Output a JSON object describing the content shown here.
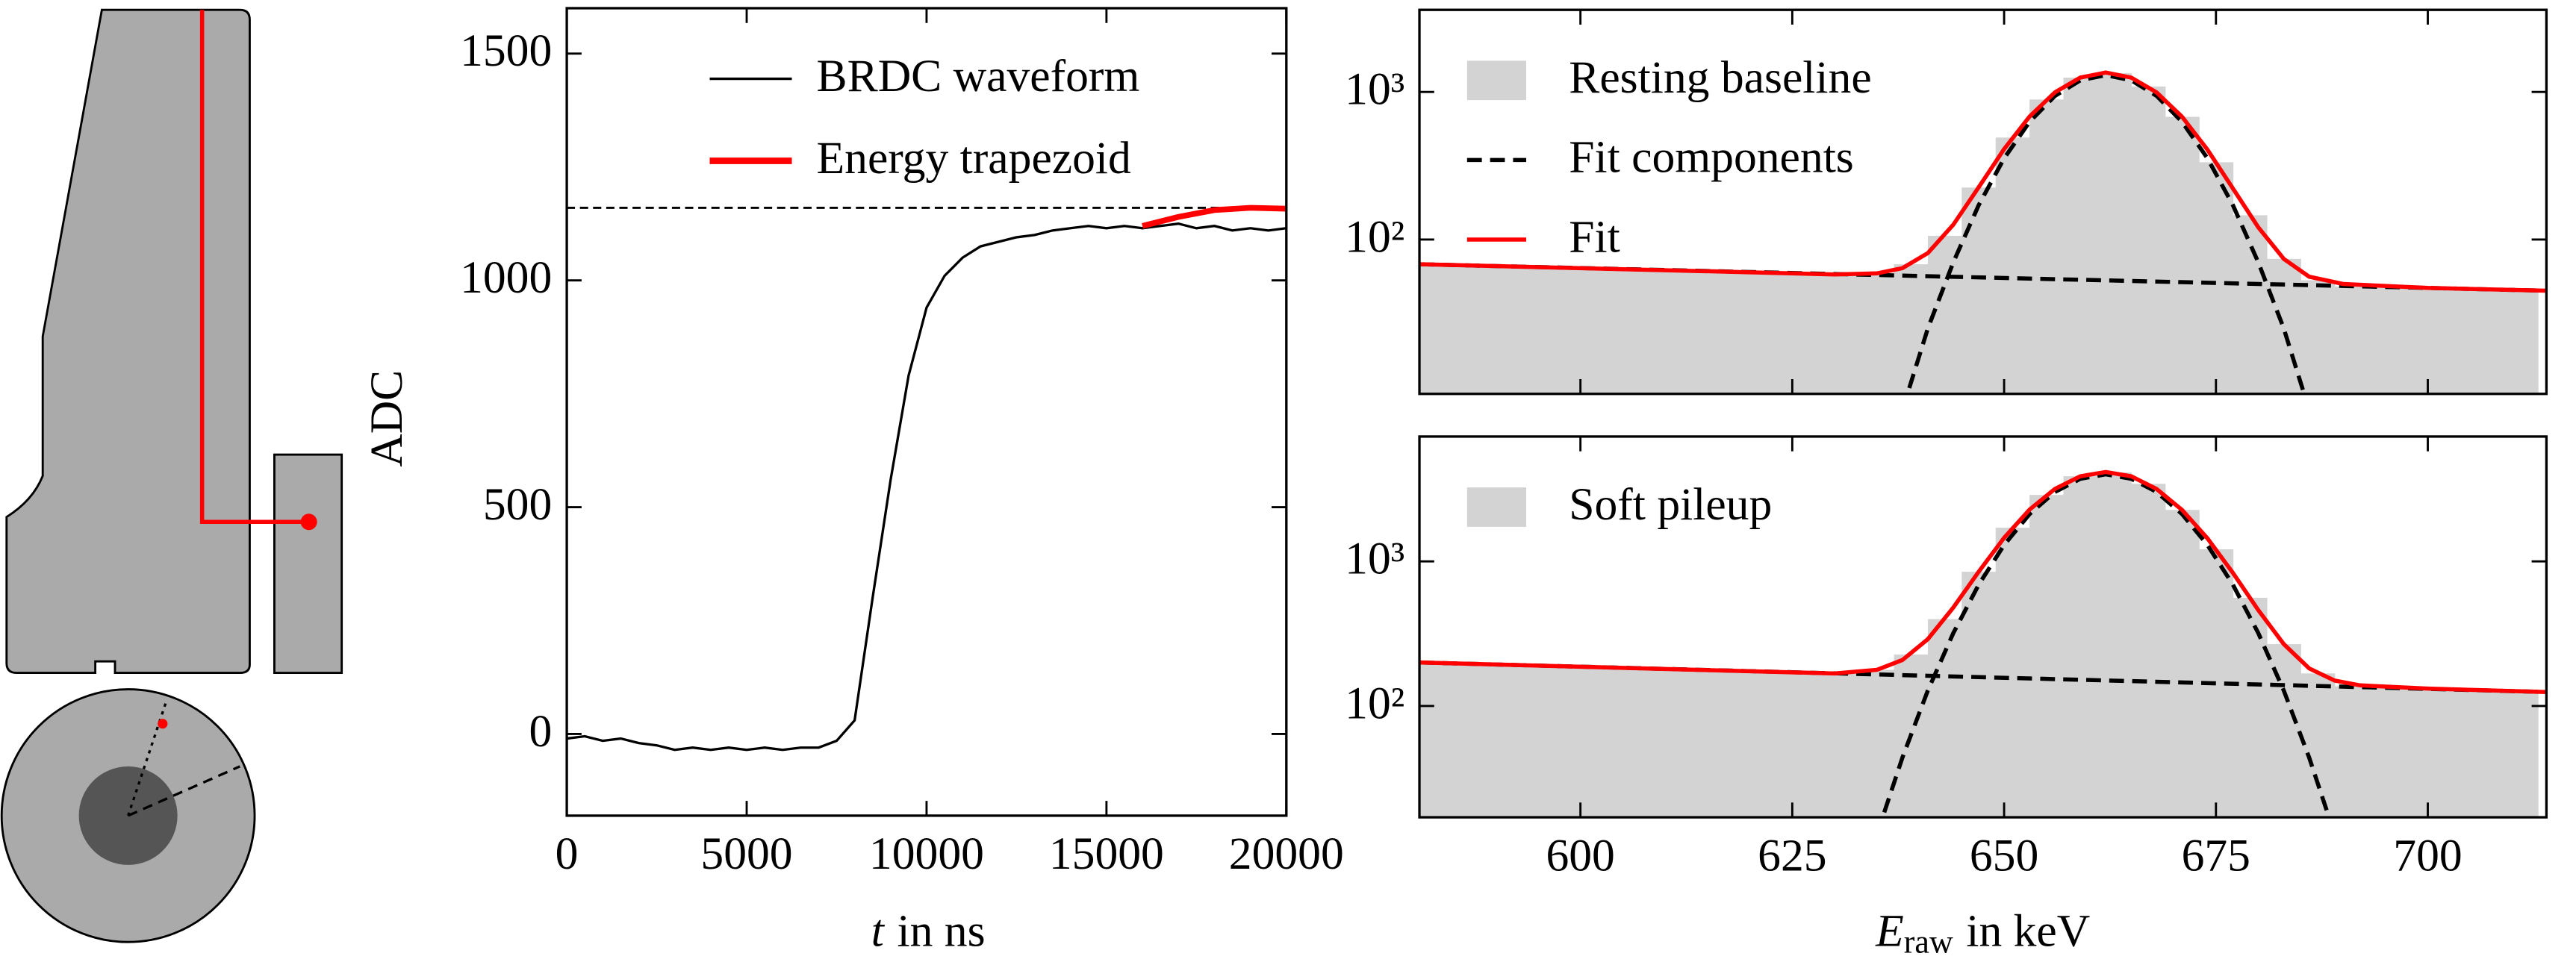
{
  "chart_data": [
    {
      "type": "line",
      "xlabel": {
        "italic": "t",
        "text": "in ns"
      },
      "ylabel": "ADC",
      "xlim": [
        0,
        20000
      ],
      "xticks": [
        0,
        5000,
        10000,
        15000,
        20000
      ],
      "ylim": [
        -180,
        1600
      ],
      "yticks": [
        0,
        500,
        1000,
        1500
      ],
      "x": [
        0,
        500,
        1000,
        1500,
        2000,
        2500,
        3000,
        3500,
        4000,
        4500,
        5000,
        5500,
        6000,
        6500,
        7000,
        7500,
        8000,
        8500,
        9000,
        9500,
        10000,
        10500,
        11000,
        11500,
        12000,
        12500,
        13000,
        13500,
        14000,
        14500,
        15000,
        15500,
        16000,
        16500,
        17000,
        17500,
        18000,
        18500,
        19000,
        19500,
        20000
      ],
      "series": [
        {
          "name": "BRDC waveform",
          "color": "#000000",
          "values": [
            -10,
            -5,
            -15,
            -10,
            -20,
            -25,
            -35,
            -30,
            -35,
            -30,
            -35,
            -30,
            -35,
            -30,
            -30,
            -15,
            30,
            300,
            560,
            790,
            940,
            1010,
            1050,
            1075,
            1085,
            1095,
            1100,
            1110,
            1115,
            1120,
            1115,
            1120,
            1115,
            1120,
            1125,
            1115,
            1120,
            1110,
            1115,
            1110,
            1115
          ]
        },
        {
          "name": "Energy trapezoid",
          "color": "#ff0000",
          "x": [
            16000,
            17000,
            18000,
            19000,
            20000
          ],
          "values": [
            1120,
            1140,
            1155,
            1160,
            1158
          ]
        }
      ],
      "reference_line": {
        "value": 1160,
        "color": "#000000"
      }
    },
    {
      "type": "histogram",
      "log_y": true,
      "xlim": [
        581,
        714
      ],
      "xticks": [
        600,
        625,
        650,
        675,
        700
      ],
      "xtick_labels": false,
      "ylim": [
        9,
        3600
      ],
      "yticks": [
        {
          "value": 100,
          "label": "10²"
        },
        {
          "value": 1000,
          "label": "10³"
        }
      ],
      "bins": [
        581,
        585,
        589,
        593,
        597,
        601,
        605,
        609,
        613,
        617,
        621,
        625,
        629,
        633,
        637,
        641,
        645,
        649,
        653,
        657,
        661,
        665,
        669,
        673,
        677,
        681,
        685,
        689,
        693,
        697,
        701,
        705,
        709,
        713
      ],
      "series": [
        {
          "name": "Resting baseline",
          "color": "#d3d3d3",
          "values": [
            69,
            66,
            67,
            64,
            65,
            63,
            64,
            61,
            63,
            60,
            61,
            58,
            59,
            59,
            68,
            106,
            225,
            491,
            889,
            1251,
            1340,
            1089,
            678,
            334,
            146,
            74,
            53,
            48,
            49,
            47,
            46,
            46,
            45
          ]
        }
      ],
      "fit_components": {
        "name": "Fit components",
        "color": "#000000",
        "gauss_x": [
          638,
          641,
          644,
          647,
          650,
          653,
          656,
          659,
          662,
          665,
          668,
          671,
          674,
          677,
          680,
          683,
          686
        ],
        "gauss_values": [
          7,
          25,
          70,
          171,
          355,
          627,
          940,
          1199,
          1300,
          1199,
          940,
          627,
          355,
          171,
          70,
          25,
          7
        ],
        "background_x": [
          581,
          714
        ],
        "background_values": [
          68,
          45
        ]
      },
      "fit": {
        "name": "Fit",
        "color": "#ff0000",
        "x": [
          581,
          620,
          630,
          635,
          638,
          641,
          644,
          647,
          650,
          653,
          656,
          659,
          662,
          665,
          668,
          671,
          674,
          677,
          680,
          683,
          686,
          690,
          700,
          714
        ],
        "values": [
          68,
          60,
          58,
          59,
          64,
          81,
          126,
          226,
          410,
          681,
          994,
          1252,
          1353,
          1251,
          992,
          679,
          406,
          222,
          121,
          74,
          56,
          50,
          47,
          45
        ]
      }
    },
    {
      "type": "histogram",
      "log_y": true,
      "xlabel": {
        "italic": "E",
        "sub": "raw",
        "text": "in keV"
      },
      "xlim": [
        581,
        714
      ],
      "xticks": [
        600,
        625,
        650,
        675,
        700
      ],
      "ylim": [
        17,
        7300
      ],
      "yticks": [
        {
          "value": 100,
          "label": "10²"
        },
        {
          "value": 1000,
          "label": "10³"
        }
      ],
      "bins": [
        581,
        585,
        589,
        593,
        597,
        601,
        605,
        609,
        613,
        617,
        621,
        625,
        629,
        633,
        637,
        641,
        645,
        649,
        653,
        657,
        661,
        665,
        669,
        673,
        677,
        681,
        685,
        689,
        693,
        697,
        701,
        705,
        709,
        713
      ],
      "series": [
        {
          "name": "Soft pileup",
          "color": "#d3d3d3",
          "values": [
            199,
            196,
            194,
            190,
            189,
            185,
            183,
            181,
            178,
            176,
            174,
            169,
            168,
            178,
            227,
            399,
            848,
            1711,
            2882,
            3880,
            4119,
            3439,
            2270,
            1212,
            560,
            268,
            168,
            137,
            134,
            132,
            130,
            128,
            126
          ]
        }
      ],
      "fit_components": {
        "color": "#000000",
        "gauss_x": [
          635,
          638,
          641,
          644,
          647,
          650,
          653,
          656,
          659,
          662,
          665,
          668,
          671,
          674,
          677,
          680,
          683,
          686,
          689
        ],
        "gauss_values": [
          13,
          44,
          128,
          319,
          690,
          1298,
          2124,
          3020,
          3728,
          4000,
          3728,
          3020,
          2124,
          1298,
          690,
          319,
          128,
          44,
          13
        ],
        "background_x": [
          581,
          714
        ],
        "background_values": [
          200,
          125
        ]
      },
      "fit": {
        "color": "#ff0000",
        "x": [
          581,
          620,
          630,
          635,
          638,
          641,
          644,
          647,
          650,
          653,
          656,
          659,
          662,
          665,
          668,
          671,
          674,
          677,
          680,
          683,
          686,
          689,
          692,
          700,
          714
        ],
        "values": [
          200,
          174,
          168,
          178,
          208,
          290,
          479,
          848,
          1455,
          2279,
          3173,
          3880,
          4150,
          3877,
          3167,
          2270,
          1442,
          833,
          460,
          268,
          182,
          150,
          139,
          132,
          125
        ]
      }
    }
  ]
}
